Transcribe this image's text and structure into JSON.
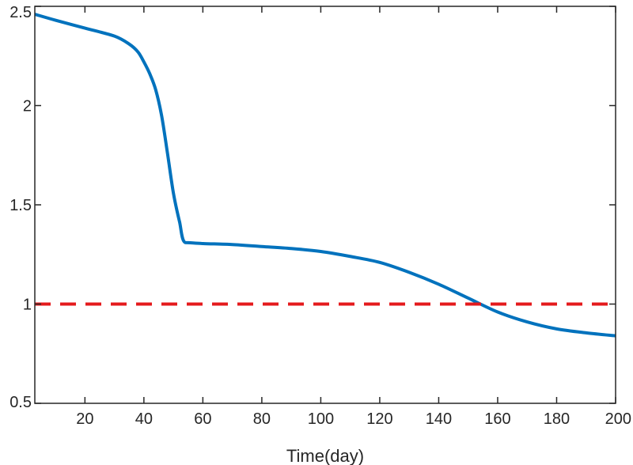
{
  "chart_data": {
    "type": "line",
    "title": "",
    "xlabel": "Time(day)",
    "ylabel": "",
    "xlim": [
      3,
      200
    ],
    "ylim": [
      0.5,
      2.5
    ],
    "xticks": [
      20,
      40,
      60,
      80,
      100,
      120,
      140,
      160,
      180,
      200
    ],
    "yticks": [
      0.5,
      1,
      1.5,
      2,
      2.5
    ],
    "xtick_labels": [
      "20",
      "40",
      "60",
      "80",
      "100",
      "120",
      "140",
      "160",
      "180",
      "200"
    ],
    "ytick_labels": [
      "0.5",
      "1",
      "1.5",
      "2",
      "2.5"
    ],
    "grid": false,
    "legend": "none",
    "series": [
      {
        "color": "#0072bd",
        "style": "solid",
        "x": [
          3,
          10,
          20,
          30,
          35,
          38,
          40,
          42,
          44,
          46,
          48,
          50,
          52,
          54,
          60,
          70,
          80,
          90,
          100,
          110,
          120,
          130,
          140,
          150,
          160,
          170,
          180,
          190,
          200
        ],
        "y": [
          2.46,
          2.43,
          2.39,
          2.35,
          2.31,
          2.27,
          2.22,
          2.16,
          2.08,
          1.95,
          1.76,
          1.56,
          1.42,
          1.31,
          1.305,
          1.3,
          1.29,
          1.28,
          1.265,
          1.24,
          1.21,
          1.16,
          1.1,
          1.03,
          0.96,
          0.91,
          0.875,
          0.855,
          0.84
        ]
      },
      {
        "color": "#e41a1c",
        "style": "dashed",
        "x": [
          3,
          200
        ],
        "y": [
          1,
          1
        ]
      }
    ]
  }
}
